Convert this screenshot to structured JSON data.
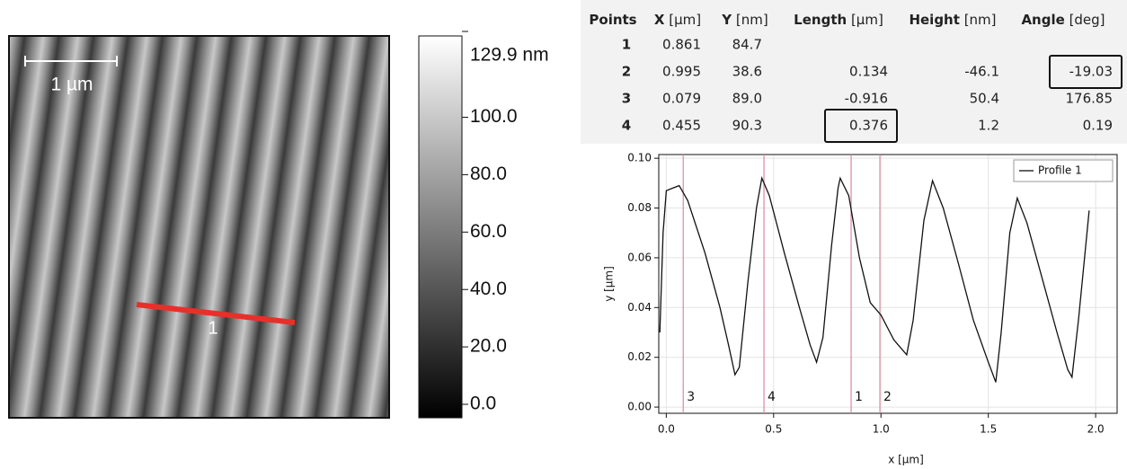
{
  "image": {
    "scale_bar": "1 µm",
    "profile_label": "1"
  },
  "colorbar": {
    "lim": [
      0,
      129.9
    ],
    "ticks": [
      {
        "value": 129.9,
        "label": "129.9 nm"
      },
      {
        "value": 100,
        "label": "100.0"
      },
      {
        "value": 80,
        "label": "80.0"
      },
      {
        "value": 60,
        "label": "60.0"
      },
      {
        "value": 40,
        "label": "40.0"
      },
      {
        "value": 20,
        "label": "20.0"
      },
      {
        "value": 0,
        "label": "0.0"
      }
    ]
  },
  "table": {
    "header": [
      {
        "name": "Points"
      },
      {
        "name": "X",
        "unit": "[µm]"
      },
      {
        "name": "Y",
        "unit": "[nm]"
      },
      {
        "name": "Length",
        "unit": "[µm]"
      },
      {
        "name": "Height",
        "unit": "[nm]"
      },
      {
        "name": "Angle",
        "unit": "[deg]"
      }
    ],
    "rows": [
      [
        "1",
        "0.861",
        "84.7"
      ],
      [
        "2",
        "0.995",
        "38.6",
        "0.134",
        "-46.1",
        "-19.03"
      ],
      [
        "3",
        "0.079",
        "89.0",
        "-0.916",
        "50.4",
        "176.85"
      ],
      [
        "4",
        "0.455",
        "90.3",
        "0.376",
        "1.2",
        "0.19"
      ]
    ]
  },
  "chart_data": {
    "type": "line",
    "xlabel": "x [µm]",
    "ylabel": "y [µm]",
    "xlim": [
      -0.035,
      2.1
    ],
    "ylim": [
      -0.0025,
      0.1015
    ],
    "xticks": [
      {
        "value": 0,
        "label": "0.0"
      },
      {
        "value": 0.5,
        "label": "0.5"
      },
      {
        "value": 1,
        "label": "1.0"
      },
      {
        "value": 1.5,
        "label": "1.5"
      },
      {
        "value": 2,
        "label": "2.0"
      }
    ],
    "yticks": [
      {
        "value": 0,
        "label": "0.00"
      },
      {
        "value": 0.02,
        "label": "0.02"
      },
      {
        "value": 0.04,
        "label": "0.04"
      },
      {
        "value": 0.06,
        "label": "0.06"
      },
      {
        "value": 0.08,
        "label": "0.08"
      },
      {
        "value": 0.1,
        "label": "0.10"
      }
    ],
    "grid": true,
    "legend": "upper right",
    "markers": [
      {
        "x": 0.079,
        "label": "3"
      },
      {
        "x": 0.455,
        "label": "4"
      },
      {
        "x": 0.861,
        "label": "1"
      },
      {
        "x": 0.995,
        "label": "2"
      }
    ],
    "series": [
      {
        "name": "Profile 1",
        "color": "#111111",
        "x": [
          -0.03,
          -0.015,
          0.0,
          0.03,
          0.06,
          0.1,
          0.18,
          0.25,
          0.29,
          0.32,
          0.34,
          0.38,
          0.42,
          0.445,
          0.48,
          0.55,
          0.62,
          0.67,
          0.7,
          0.73,
          0.77,
          0.8,
          0.81,
          0.85,
          0.9,
          0.95,
          1.0,
          1.06,
          1.12,
          1.15,
          1.2,
          1.24,
          1.29,
          1.36,
          1.43,
          1.5,
          1.535,
          1.56,
          1.6,
          1.635,
          1.68,
          1.75,
          1.82,
          1.87,
          1.89,
          1.92,
          1.97
        ],
        "values": [
          0.03,
          0.07,
          0.087,
          0.088,
          0.089,
          0.083,
          0.062,
          0.04,
          0.025,
          0.013,
          0.016,
          0.05,
          0.08,
          0.092,
          0.085,
          0.062,
          0.04,
          0.025,
          0.018,
          0.028,
          0.065,
          0.088,
          0.092,
          0.085,
          0.06,
          0.042,
          0.037,
          0.027,
          0.021,
          0.035,
          0.075,
          0.091,
          0.08,
          0.058,
          0.035,
          0.018,
          0.01,
          0.03,
          0.07,
          0.084,
          0.074,
          0.052,
          0.03,
          0.015,
          0.012,
          0.035,
          0.079
        ]
      }
    ]
  }
}
